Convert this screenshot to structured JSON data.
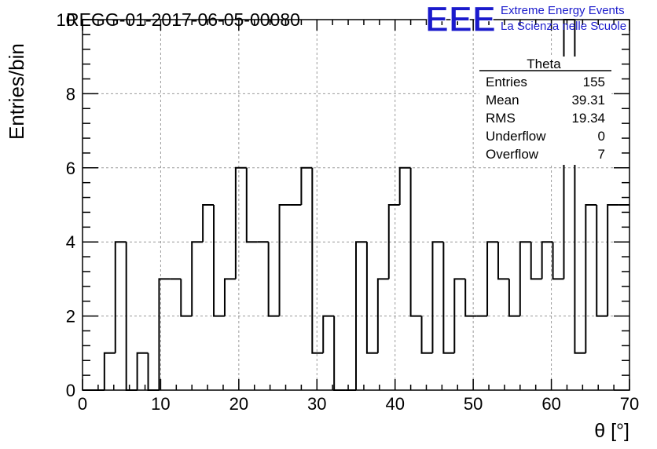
{
  "header": {
    "title": "REGG-01-2017-06-05-00080",
    "logo_text": "EEE",
    "logo_line1": "Extreme Energy Events",
    "logo_line2": "La Scienza nelle Scuole"
  },
  "stats": {
    "name": "Theta",
    "rows": [
      {
        "label": "Entries",
        "value": "155"
      },
      {
        "label": "Mean",
        "value": "39.31"
      },
      {
        "label": "RMS",
        "value": "19.34"
      },
      {
        "label": "Underflow",
        "value": "0"
      },
      {
        "label": "Overflow",
        "value": "7"
      }
    ]
  },
  "colors": {
    "logo": "#1a1acc",
    "line": "#000000",
    "grid": "#9a9a9a"
  },
  "chart_data": {
    "type": "bar",
    "style": "step-histogram",
    "xlabel": "θ [°]",
    "ylabel": "Entries/bin",
    "xlim": [
      0,
      70
    ],
    "ylim": [
      0,
      10
    ],
    "grid": true,
    "bin_width": 1.4,
    "x_ticks": [
      "0",
      "10",
      "20",
      "30",
      "40",
      "50",
      "60",
      "70"
    ],
    "y_ticks": [
      "0",
      "2",
      "4",
      "6",
      "8",
      "10"
    ],
    "values": [
      0,
      0,
      1,
      4,
      0,
      1,
      0,
      3,
      3,
      2,
      4,
      5,
      2,
      3,
      6,
      4,
      4,
      2,
      5,
      5,
      6,
      1,
      2,
      0,
      0,
      4,
      1,
      3,
      5,
      6,
      2,
      1,
      4,
      1,
      3,
      2,
      2,
      4,
      3,
      2,
      4,
      3,
      4,
      3,
      10,
      1,
      5,
      2,
      5,
      5
    ]
  }
}
